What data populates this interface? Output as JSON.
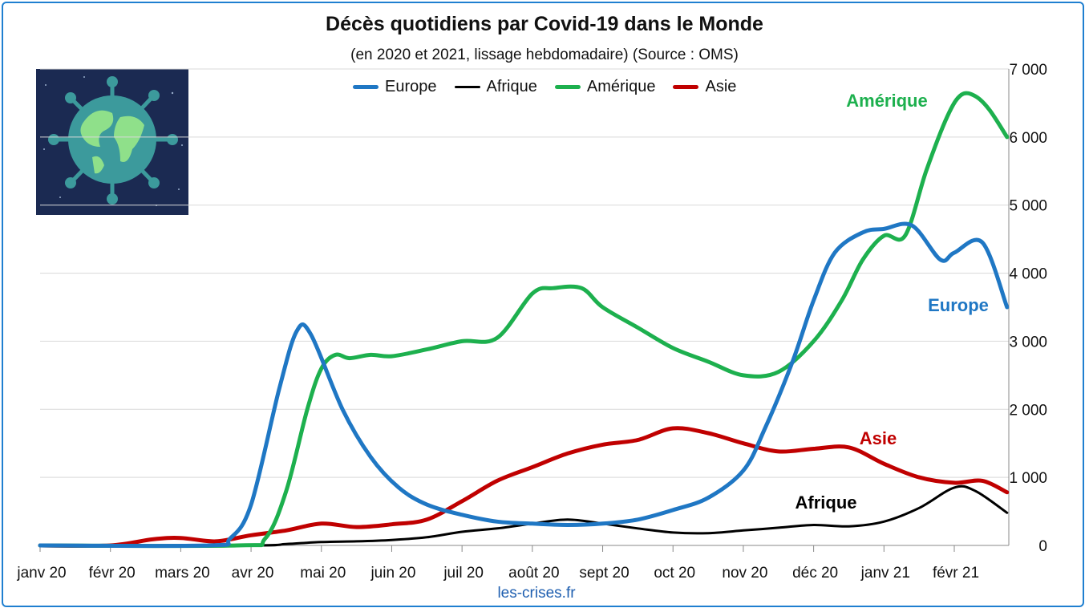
{
  "colors": {
    "border": "#1F7FD0",
    "europe": "#1F77C4",
    "afrique": "#000000",
    "amerique": "#1DB04E",
    "asie": "#C00000"
  },
  "chart_data": {
    "type": "line",
    "title": "Décès quotidiens par Covid-19 dans le Monde",
    "subtitle": "(en 2020 et 2021, lissage hebdomadaire) (Source : OMS)",
    "source_label": "les-crises.fr",
    "x_labels": [
      "janv 20",
      "févr 20",
      "mars 20",
      "avr 20",
      "mai 20",
      "juin 20",
      "juil 20",
      "août 20",
      "sept 20",
      "oct 20",
      "nov 20",
      "déc 20",
      "janv 21",
      "févr 21"
    ],
    "x_range": [
      0,
      13.8
    ],
    "ylim": [
      0,
      7000
    ],
    "y_ticks": [
      "0",
      "1 000",
      "2 000",
      "3 000",
      "4 000",
      "5 000",
      "6 000",
      "7 000"
    ],
    "y_axis_side": "right",
    "grid": true,
    "legend_position": "top",
    "series": [
      {
        "name": "Europe",
        "annotation": "Europe",
        "x": [
          0,
          2.4,
          2.7,
          3.0,
          3.4,
          3.65,
          3.85,
          4.3,
          4.7,
          5.1,
          5.5,
          6.0,
          6.5,
          7.0,
          7.5,
          8.0,
          8.5,
          9.0,
          9.5,
          10.0,
          10.3,
          10.7,
          11.0,
          11.3,
          11.7,
          12.0,
          12.4,
          12.8,
          13.0,
          13.4,
          13.75
        ],
        "y": [
          0,
          0,
          100,
          600,
          2300,
          3150,
          3100,
          2000,
          1300,
          850,
          600,
          450,
          350,
          320,
          300,
          320,
          380,
          520,
          700,
          1100,
          1700,
          2700,
          3600,
          4300,
          4600,
          4650,
          4700,
          4200,
          4300,
          4450,
          3500
        ]
      },
      {
        "name": "Afrique",
        "annotation": "Afrique",
        "x": [
          0,
          3.0,
          3.5,
          4.0,
          4.5,
          5.0,
          5.5,
          6.0,
          6.5,
          7.0,
          7.5,
          8.0,
          8.5,
          9.0,
          9.5,
          10.0,
          10.5,
          11.0,
          11.5,
          12.0,
          12.5,
          13.0,
          13.3,
          13.75
        ],
        "y": [
          0,
          0,
          20,
          50,
          60,
          80,
          120,
          200,
          250,
          320,
          380,
          320,
          250,
          190,
          180,
          220,
          260,
          300,
          280,
          350,
          550,
          850,
          800,
          480
        ]
      },
      {
        "name": "Amérique",
        "annotation": "Amérique",
        "x": [
          0,
          2.8,
          3.2,
          3.5,
          3.8,
          4.0,
          4.2,
          4.4,
          4.7,
          5.0,
          5.5,
          6.0,
          6.5,
          7.0,
          7.3,
          7.7,
          8.0,
          8.5,
          9.0,
          9.5,
          10.0,
          10.5,
          11.0,
          11.4,
          11.7,
          12.0,
          12.3,
          12.6,
          12.9,
          13.1,
          13.3,
          13.5,
          13.75
        ],
        "y": [
          0,
          0,
          100,
          800,
          2000,
          2600,
          2800,
          2750,
          2800,
          2780,
          2880,
          3000,
          3050,
          3700,
          3780,
          3780,
          3500,
          3200,
          2900,
          2700,
          2500,
          2550,
          3000,
          3600,
          4200,
          4550,
          4550,
          5500,
          6300,
          6620,
          6600,
          6400,
          6000
        ]
      },
      {
        "name": "Asie",
        "annotation": "Asie",
        "x": [
          0,
          1.0,
          1.6,
          2.0,
          2.5,
          3.0,
          3.5,
          4.0,
          4.5,
          5.0,
          5.5,
          6.0,
          6.5,
          7.0,
          7.5,
          8.0,
          8.5,
          9.0,
          9.5,
          10.0,
          10.5,
          11.0,
          11.5,
          12.0,
          12.5,
          13.0,
          13.4,
          13.75
        ],
        "y": [
          0,
          0,
          90,
          110,
          60,
          150,
          220,
          320,
          270,
          310,
          380,
          650,
          950,
          1150,
          1350,
          1480,
          1550,
          1720,
          1650,
          1500,
          1380,
          1420,
          1440,
          1200,
          1000,
          920,
          950,
          780
        ]
      }
    ]
  }
}
